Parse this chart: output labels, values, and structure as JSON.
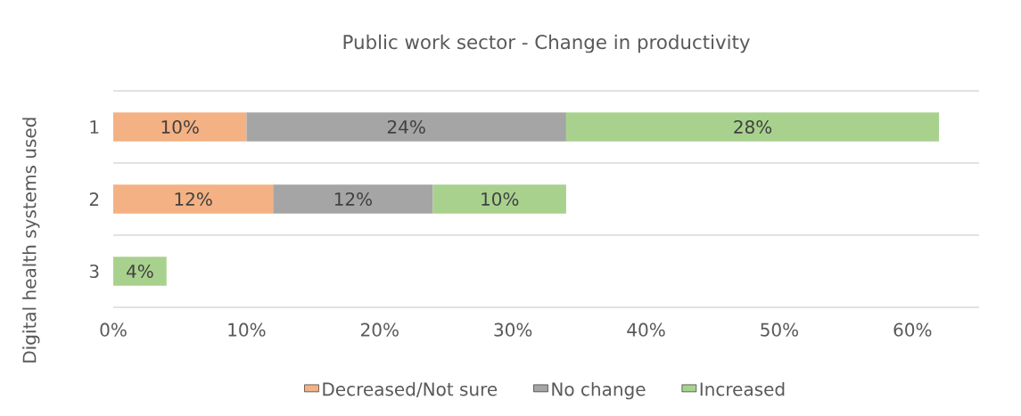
{
  "chart_data": {
    "type": "bar",
    "orientation": "horizontal",
    "stacked": true,
    "title": "Public work sector - Change in productivity",
    "ylabel": "Digital health systems used",
    "categories": [
      "1",
      "2",
      "3"
    ],
    "series": [
      {
        "name": "Decreased/Not sure",
        "color": "#f4b183",
        "values": [
          10,
          12,
          null
        ],
        "value_labels": [
          "10%",
          "12%",
          null
        ]
      },
      {
        "name": "No change",
        "color": "#a5a5a5",
        "values": [
          24,
          12,
          null
        ],
        "value_labels": [
          "24%",
          "12%",
          null
        ]
      },
      {
        "name": "Increased",
        "color": "#a9d18e",
        "values": [
          28,
          10,
          4
        ],
        "value_labels": [
          "28%",
          "10%",
          "4%"
        ]
      }
    ],
    "xlim": [
      0,
      65
    ],
    "xticks": [
      {
        "value": 0,
        "label": "0%"
      },
      {
        "value": 10,
        "label": "10%"
      },
      {
        "value": 20,
        "label": "20%"
      },
      {
        "value": 30,
        "label": "30%"
      },
      {
        "value": 40,
        "label": "40%"
      },
      {
        "value": 50,
        "label": "50%"
      },
      {
        "value": 60,
        "label": "60%"
      }
    ],
    "grid": "y",
    "legend": "bottom"
  }
}
